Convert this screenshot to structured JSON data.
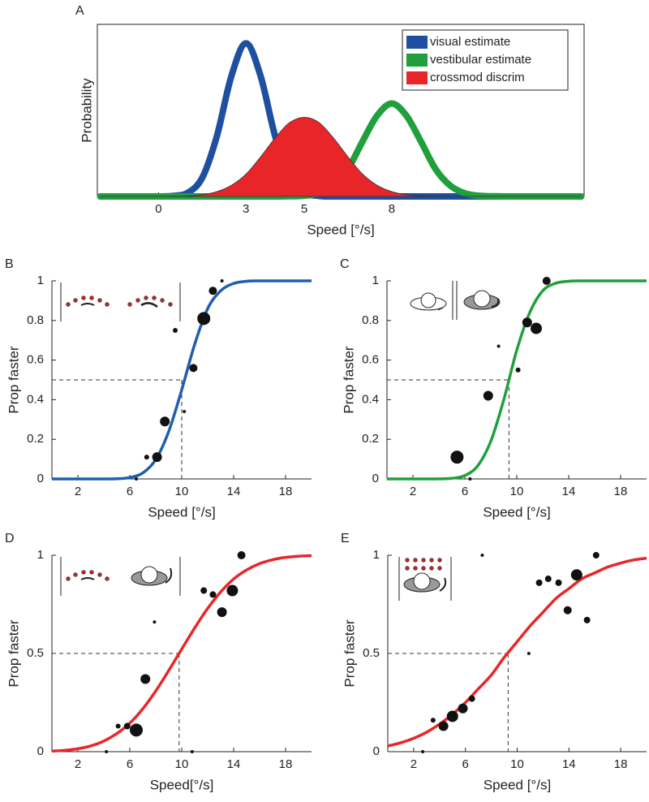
{
  "chart_data": [
    {
      "type": "line",
      "label": "A",
      "xlabel": "Speed [°/s]",
      "ylabel": "Probability",
      "x": [
        -2,
        -1.5,
        -1,
        -0.5,
        0,
        0.5,
        1,
        1.5,
        2,
        2.5,
        3,
        3.5,
        4,
        4.5,
        5,
        5.5,
        6,
        6.5,
        7,
        7.5,
        8,
        8.5,
        9,
        9.5,
        10,
        10.5,
        11,
        11.5,
        12,
        12.5,
        13,
        13.5,
        14,
        14.5
      ],
      "series": [
        {
          "name": "visual estimate",
          "color": "#1f4fa0",
          "area": false,
          "values": [
            0,
            0,
            0,
            0,
            0,
            0.003,
            0.021,
            0.109,
            0.35,
            0.7,
            0.89,
            0.7,
            0.35,
            0.109,
            0.021,
            0.003,
            0,
            0,
            0,
            0,
            0,
            0,
            0,
            0,
            0,
            0,
            0,
            0,
            0,
            0,
            0,
            0,
            0,
            0
          ]
        },
        {
          "name": "vestibular estimate",
          "color": "#1fa03c",
          "area": false,
          "values": [
            0,
            0,
            0,
            0,
            0,
            0,
            0,
            0,
            0,
            0,
            0,
            0,
            0,
            0.001,
            0.004,
            0.019,
            0.064,
            0.16,
            0.32,
            0.47,
            0.54,
            0.47,
            0.32,
            0.16,
            0.064,
            0.019,
            0.004,
            0.001,
            0,
            0,
            0,
            0,
            0,
            0
          ]
        },
        {
          "name": "crossmod discrim",
          "color": "#e8262a",
          "area": true,
          "values": [
            0,
            0,
            0,
            0,
            0,
            0.001,
            0.003,
            0.01,
            0.028,
            0.065,
            0.13,
            0.23,
            0.34,
            0.43,
            0.46,
            0.43,
            0.34,
            0.23,
            0.13,
            0.065,
            0.028,
            0.01,
            0.003,
            0.001,
            0,
            0,
            0,
            0,
            0,
            0,
            0,
            0,
            0,
            0
          ]
        }
      ],
      "xlim": [
        -2.1,
        14.6
      ],
      "ylim": [
        0,
        1
      ],
      "xticks": [
        0,
        3,
        5,
        8
      ],
      "legend": "upper right"
    },
    {
      "type": "scatter",
      "label": "B",
      "xlabel": "Speed [°/s]",
      "ylabel": "Prop faster",
      "color": "#111111",
      "x": [
        6.5,
        7.3,
        8.1,
        8.7,
        9.5,
        10.2,
        10.9,
        11.7,
        12.4,
        13.1
      ],
      "values": [
        0,
        0.11,
        0.11,
        0.29,
        0.75,
        0.34,
        0.56,
        0.81,
        0.95,
        1
      ],
      "sizes": [
        1,
        1.5,
        3,
        3,
        1.5,
        1,
        2.5,
        4,
        2.5,
        1
      ],
      "fit": {
        "color": "#1f5fb0",
        "x": [
          0,
          1,
          2,
          3,
          4,
          5,
          6,
          7,
          8,
          9,
          10,
          11,
          12,
          13,
          14,
          15,
          16,
          17,
          18,
          19,
          20
        ],
        "values": [
          0,
          0,
          0,
          0,
          0.0001,
          0.001,
          0.007,
          0.03,
          0.098,
          0.24,
          0.45,
          0.68,
          0.86,
          0.95,
          0.987,
          0.998,
          1,
          1,
          1,
          1,
          1
        ]
      },
      "reference": {
        "x": 10,
        "y": 0.5
      },
      "xlim": [
        0,
        20
      ],
      "ylim": [
        0,
        1
      ],
      "xticks": [
        2,
        6,
        10,
        14,
        18
      ],
      "yticks": [
        0,
        0.2,
        0.4,
        0.6,
        0.8,
        1
      ]
    },
    {
      "type": "scatter",
      "label": "C",
      "xlabel": "Speed [°/s]",
      "ylabel": "Prop faster",
      "color": "#111111",
      "x": [
        5.4,
        6.4,
        7.8,
        8.6,
        10.1,
        10.8,
        11.5,
        12.3
      ],
      "values": [
        0.11,
        0,
        0.42,
        0.67,
        0.55,
        0.79,
        0.76,
        1
      ],
      "sizes": [
        4,
        1,
        3,
        1,
        1.5,
        3,
        3.5,
        2.5
      ],
      "fit": {
        "color": "#1fa03c",
        "x": [
          0,
          1,
          2,
          3,
          4,
          5,
          6,
          7,
          8,
          9,
          10,
          11,
          12,
          13,
          14,
          15,
          16,
          17,
          18,
          19,
          20
        ],
        "values": [
          0,
          0,
          0,
          0,
          0.0004,
          0.003,
          0.017,
          0.067,
          0.19,
          0.4,
          0.65,
          0.84,
          0.95,
          0.988,
          0.998,
          1,
          1,
          1,
          1,
          1,
          1
        ]
      },
      "reference": {
        "x": 9.4,
        "y": 0.5
      },
      "xlim": [
        0,
        20
      ],
      "ylim": [
        0,
        1
      ],
      "xticks": [
        2,
        6,
        10,
        14,
        18
      ],
      "yticks": [
        0,
        0.2,
        0.4,
        0.6,
        0.8,
        1
      ]
    },
    {
      "type": "scatter",
      "label": "D",
      "xlabel": "Speed[°/s]",
      "ylabel": "Prop faster",
      "color": "#111111",
      "x": [
        4.2,
        5.1,
        5.8,
        6.5,
        7.2,
        7.9,
        10.8,
        11.7,
        12.4,
        13.1,
        13.9,
        14.6
      ],
      "values": [
        0,
        0.13,
        0.13,
        0.11,
        0.37,
        0.66,
        0,
        0.82,
        0.8,
        0.71,
        0.82,
        1
      ],
      "sizes": [
        1,
        1.5,
        2,
        4,
        3,
        1,
        1,
        2,
        2,
        3,
        3.5,
        2.5
      ],
      "fit": {
        "color": "#e8262a",
        "x": [
          0,
          1,
          2,
          3,
          4,
          5,
          6,
          7,
          8,
          9,
          10,
          11,
          12,
          13,
          14,
          15,
          16,
          17,
          18,
          19,
          20
        ],
        "values": [
          0.003,
          0.007,
          0.015,
          0.029,
          0.054,
          0.092,
          0.145,
          0.218,
          0.309,
          0.413,
          0.522,
          0.63,
          0.729,
          0.813,
          0.879,
          0.925,
          0.957,
          0.977,
          0.989,
          0.995,
          0.998
        ]
      },
      "reference": {
        "x": 9.8,
        "y": 0.5
      },
      "xlim": [
        0,
        20
      ],
      "ylim": [
        0,
        1
      ],
      "xticks": [
        2,
        6,
        10,
        14,
        18
      ],
      "yticks": [
        0,
        0.5,
        1
      ]
    },
    {
      "type": "scatter",
      "label": "E",
      "xlabel": "Speed [°/s]",
      "ylabel": "Prop faster",
      "color": "#111111",
      "x": [
        2.7,
        3.5,
        4.3,
        5.0,
        5.8,
        6.5,
        7.3,
        10.9,
        11.7,
        12.4,
        13.2,
        13.9,
        14.6,
        15.4,
        16.1
      ],
      "values": [
        0,
        0.16,
        0.13,
        0.18,
        0.22,
        0.27,
        1,
        0.5,
        0.86,
        0.88,
        0.86,
        0.72,
        0.9,
        0.67,
        1
      ],
      "sizes": [
        1,
        1.5,
        3,
        3.5,
        3,
        2,
        1,
        1,
        2,
        2,
        2,
        2.5,
        3.5,
        2,
        2
      ],
      "fit": {
        "color": "#e8262a",
        "x": [
          0,
          1,
          2,
          3,
          4,
          5,
          6,
          7,
          8,
          9,
          10,
          11,
          12,
          13,
          14,
          15,
          16,
          17,
          18,
          19,
          20
        ],
        "values": [
          0.029,
          0.045,
          0.068,
          0.099,
          0.14,
          0.19,
          0.25,
          0.32,
          0.39,
          0.48,
          0.56,
          0.64,
          0.71,
          0.78,
          0.83,
          0.88,
          0.91,
          0.94,
          0.96,
          0.976,
          0.985
        ]
      },
      "reference": {
        "x": 9.3,
        "y": 0.5
      },
      "xlim": [
        0,
        20
      ],
      "ylim": [
        0,
        1
      ],
      "xticks": [
        2,
        6,
        10,
        14,
        18
      ],
      "yticks": [
        0,
        0.5,
        1
      ]
    }
  ]
}
